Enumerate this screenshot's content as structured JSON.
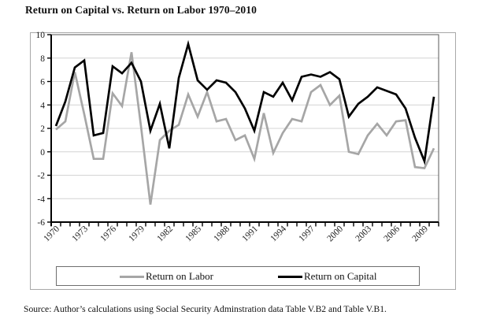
{
  "title": "Return on Capital vs. Return on Labor 1970–2010",
  "source": "Source: Author’s calculations using Social Security Adminstration data Table V.B2 and Table V.B1.",
  "legend": {
    "labor": "Return on Labor",
    "capital": "Return on Capital"
  },
  "colors": {
    "labor": "#a6a6a6",
    "capital": "#000000",
    "grid": "#d4d4d4",
    "plot_border": "#595959",
    "axis": "#000000",
    "text": "#1a1a1a"
  },
  "chart_data": {
    "type": "line",
    "title": "Return on Capital vs. Return on Labor 1970–2010",
    "x": [
      1970,
      1971,
      1972,
      1973,
      1974,
      1975,
      1976,
      1977,
      1978,
      1979,
      1980,
      1981,
      1982,
      1983,
      1984,
      1985,
      1986,
      1987,
      1988,
      1989,
      1990,
      1991,
      1992,
      1993,
      1994,
      1995,
      1996,
      1997,
      1998,
      1999,
      2000,
      2001,
      2002,
      2003,
      2004,
      2005,
      2006,
      2007,
      2008,
      2009,
      2010
    ],
    "series": [
      {
        "name": "Return on Labor",
        "values": [
          1.9,
          2.6,
          6.8,
          3.2,
          -0.6,
          -0.6,
          5.0,
          3.9,
          8.5,
          2.2,
          -4.5,
          1.0,
          1.8,
          2.3,
          4.9,
          3.0,
          5.1,
          2.6,
          2.8,
          1.0,
          1.4,
          -0.6,
          3.3,
          -0.1,
          1.6,
          2.8,
          2.6,
          5.1,
          5.7,
          4.0,
          4.8,
          0.0,
          -0.2,
          1.4,
          2.4,
          1.4,
          2.6,
          2.7,
          -1.3,
          -1.4,
          0.3
        ]
      },
      {
        "name": "Return on Capital",
        "values": [
          2.2,
          4.3,
          7.2,
          7.8,
          1.4,
          1.6,
          7.3,
          6.7,
          7.6,
          6.0,
          1.8,
          4.1,
          0.3,
          6.3,
          9.2,
          6.1,
          5.3,
          6.1,
          5.9,
          5.1,
          3.7,
          1.8,
          5.1,
          4.7,
          5.9,
          4.4,
          6.4,
          6.6,
          6.4,
          6.8,
          6.2,
          3.0,
          4.1,
          4.7,
          5.5,
          5.2,
          4.9,
          3.7,
          1.2,
          -0.8,
          4.7
        ]
      }
    ],
    "ylim": [
      -6,
      10
    ],
    "ytick_step": 2,
    "ytick_labels": [
      "10",
      "8",
      "6",
      "4",
      "2",
      "0",
      "-2",
      "-4",
      "-6"
    ],
    "xtick_labels": [
      "1970",
      "1973",
      "1976",
      "1979",
      "1982",
      "1985",
      "1988",
      "1991",
      "1994",
      "1997",
      "2000",
      "2003",
      "2006",
      "2009"
    ],
    "grid": true,
    "legend_position": "bottom"
  }
}
